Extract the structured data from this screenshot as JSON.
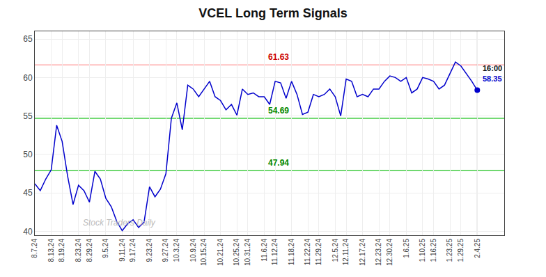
{
  "chart_data": {
    "type": "line",
    "title": "VCEL Long Term Signals",
    "categories": [
      "8.7.24",
      null,
      null,
      "8.13.24",
      null,
      "8.19.24",
      null,
      null,
      "8.23.24",
      null,
      "8.29.24",
      null,
      null,
      "9.5.24",
      null,
      null,
      "9.11.24",
      null,
      "9.17.24",
      null,
      null,
      "9.23.24",
      null,
      null,
      "9.27.24",
      null,
      "10.3.24",
      null,
      null,
      "10.9.24",
      null,
      "10.15.24",
      null,
      null,
      "10.21.24",
      null,
      null,
      "10.25.24",
      null,
      "10.31.24",
      null,
      null,
      "11.6.24",
      null,
      "11.12.24",
      null,
      null,
      "11.18.24",
      null,
      null,
      "11.22.24",
      null,
      "11.29.24",
      null,
      null,
      "12.5.24",
      null,
      "12.11.24",
      null,
      null,
      "12.17.24",
      null,
      null,
      "12.23.24",
      null,
      "12.30.24",
      null,
      null,
      "1.6.25",
      null,
      null,
      "1.10.25",
      null,
      "1.16.25",
      null,
      null,
      "1.23.25",
      null,
      "1.29.25",
      null,
      null,
      "2.4.25"
    ],
    "values": [
      46.2,
      45.3,
      46.8,
      48.0,
      53.8,
      51.7,
      47.2,
      43.5,
      46.0,
      45.3,
      43.8,
      47.8,
      46.8,
      44.3,
      43.2,
      41.3,
      40.1,
      41.0,
      41.5,
      40.5,
      41.2,
      45.8,
      44.5,
      45.5,
      47.5,
      54.7,
      56.7,
      53.2,
      59.0,
      58.5,
      57.5,
      58.5,
      59.5,
      57.5,
      57.0,
      55.8,
      56.5,
      55.1,
      58.5,
      57.8,
      58.0,
      57.5,
      57.5,
      56.5,
      59.5,
      59.3,
      57.3,
      59.5,
      57.8,
      55.2,
      55.5,
      57.8,
      57.5,
      57.8,
      58.5,
      57.5,
      55.0,
      59.8,
      59.5,
      57.5,
      57.8,
      57.5,
      58.5,
      58.5,
      59.5,
      60.2,
      60.0,
      59.5,
      60.0,
      58.0,
      58.5,
      60.0,
      59.8,
      59.5,
      58.5,
      59.0,
      60.5,
      62.0,
      61.5,
      60.5,
      59.5,
      58.35
    ],
    "color": "#0000cc",
    "ylim": [
      39.5,
      66.0
    ],
    "yticks": [
      40,
      45,
      50,
      55,
      60,
      65
    ],
    "grid": true,
    "hlines": [
      {
        "value": 61.63,
        "label": "61.63",
        "color": "#ffaaaa",
        "label_color": "#cc0000"
      },
      {
        "value": 54.69,
        "label": "54.69",
        "color": "#44cc44",
        "label_color": "#008800"
      },
      {
        "value": 47.94,
        "label": "47.94",
        "color": "#44cc44",
        "label_color": "#008800"
      }
    ],
    "last_point": {
      "value": 58.35,
      "color": "#0000cc"
    },
    "annotations": [
      {
        "text": "16:00",
        "color": "#111111"
      },
      {
        "text": "58.35",
        "color": "#0000cc"
      },
      {
        "text": "Stock Traders Daily",
        "color": "#bbbbbb"
      }
    ]
  }
}
